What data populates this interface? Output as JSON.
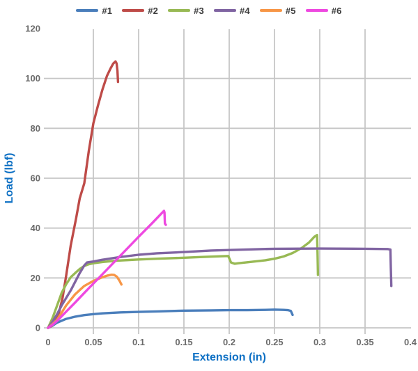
{
  "chart_data": {
    "type": "line",
    "title": "",
    "xlabel": "Extension (in)",
    "ylabel": "Load (lbf)",
    "xlim": [
      0,
      0.4
    ],
    "ylim": [
      0,
      120
    ],
    "grid": true,
    "legend_position": "top",
    "x_ticks": [
      0,
      0.05,
      0.1,
      0.15,
      0.2,
      0.25,
      0.3,
      0.35,
      0.4
    ],
    "x_tick_labels": [
      "0",
      "0.05",
      "0.1",
      "0.15",
      "0.2",
      "0.25",
      "0.3",
      "0.35",
      "0.4"
    ],
    "y_ticks": [
      0,
      20,
      40,
      60,
      80,
      100,
      120
    ],
    "y_tick_labels": [
      "0",
      "20",
      "40",
      "60",
      "80",
      "100",
      "120"
    ],
    "grid_color": "#c6c6c6",
    "tick_label_color": "#6b6b6b",
    "axis_title_color": "#0d70c4",
    "legend_label_color": "#3d3d3d",
    "series": [
      {
        "name": "#1",
        "color": "#4A7EBB",
        "points": [
          [
            0,
            0
          ],
          [
            0.005,
            0.9
          ],
          [
            0.01,
            2.1
          ],
          [
            0.02,
            3.6
          ],
          [
            0.03,
            4.5
          ],
          [
            0.04,
            5.1
          ],
          [
            0.05,
            5.5
          ],
          [
            0.06,
            5.8
          ],
          [
            0.08,
            6.2
          ],
          [
            0.1,
            6.4
          ],
          [
            0.12,
            6.6
          ],
          [
            0.15,
            6.9
          ],
          [
            0.18,
            7.0
          ],
          [
            0.2,
            7.1
          ],
          [
            0.22,
            7.1
          ],
          [
            0.24,
            7.2
          ],
          [
            0.25,
            7.3
          ],
          [
            0.26,
            7.2
          ],
          [
            0.265,
            7.1
          ],
          [
            0.268,
            6.8
          ],
          [
            0.27,
            5.2
          ]
        ]
      },
      {
        "name": "#2",
        "color": "#BE4B48",
        "points": [
          [
            0,
            0
          ],
          [
            0.004,
            0.8
          ],
          [
            0.008,
            2.5
          ],
          [
            0.012,
            6
          ],
          [
            0.016,
            12
          ],
          [
            0.02,
            21
          ],
          [
            0.025,
            33
          ],
          [
            0.031,
            44
          ],
          [
            0.035,
            52
          ],
          [
            0.04,
            58
          ],
          [
            0.045,
            71
          ],
          [
            0.05,
            82
          ],
          [
            0.055,
            89
          ],
          [
            0.06,
            95.5
          ],
          [
            0.065,
            101
          ],
          [
            0.069,
            104
          ],
          [
            0.072,
            106
          ],
          [
            0.0745,
            106.8
          ],
          [
            0.0757,
            106
          ],
          [
            0.0766,
            103
          ],
          [
            0.0772,
            98.6
          ]
        ]
      },
      {
        "name": "#3",
        "color": "#98B954",
        "points": [
          [
            0,
            0
          ],
          [
            0.005,
            4
          ],
          [
            0.01,
            9
          ],
          [
            0.015,
            14
          ],
          [
            0.02,
            17.5
          ],
          [
            0.025,
            20.3
          ],
          [
            0.03,
            22
          ],
          [
            0.035,
            23.6
          ],
          [
            0.04,
            24.8
          ],
          [
            0.045,
            25.5
          ],
          [
            0.05,
            25.9
          ],
          [
            0.06,
            26.4
          ],
          [
            0.075,
            26.9
          ],
          [
            0.09,
            27.2
          ],
          [
            0.1,
            27.4
          ],
          [
            0.12,
            27.7
          ],
          [
            0.15,
            28.1
          ],
          [
            0.17,
            28.4
          ],
          [
            0.19,
            28.7
          ],
          [
            0.199,
            28.8
          ],
          [
            0.202,
            26.2
          ],
          [
            0.206,
            25.7
          ],
          [
            0.21,
            25.9
          ],
          [
            0.22,
            26.3
          ],
          [
            0.24,
            27.1
          ],
          [
            0.25,
            27.7
          ],
          [
            0.26,
            28.6
          ],
          [
            0.27,
            30.0
          ],
          [
            0.28,
            32.0
          ],
          [
            0.288,
            34.2
          ],
          [
            0.294,
            36.5
          ],
          [
            0.297,
            37.2
          ],
          [
            0.2975,
            30.0
          ],
          [
            0.298,
            21.2
          ]
        ]
      },
      {
        "name": "#4",
        "color": "#8064A2",
        "points": [
          [
            0,
            0
          ],
          [
            0.005,
            2.5
          ],
          [
            0.01,
            5.5
          ],
          [
            0.015,
            9
          ],
          [
            0.02,
            12
          ],
          [
            0.025,
            15
          ],
          [
            0.03,
            18.5
          ],
          [
            0.035,
            22
          ],
          [
            0.04,
            25
          ],
          [
            0.043,
            26.2
          ],
          [
            0.05,
            26.6
          ],
          [
            0.06,
            27.3
          ],
          [
            0.08,
            28.4
          ],
          [
            0.1,
            29.3
          ],
          [
            0.12,
            29.9
          ],
          [
            0.15,
            30.4
          ],
          [
            0.18,
            31.0
          ],
          [
            0.2,
            31.2
          ],
          [
            0.25,
            31.7
          ],
          [
            0.3,
            31.8
          ],
          [
            0.35,
            31.7
          ],
          [
            0.375,
            31.6
          ],
          [
            0.378,
            31.4
          ],
          [
            0.3785,
            24.0
          ],
          [
            0.379,
            16.8
          ]
        ]
      },
      {
        "name": "#5",
        "color": "#F79646",
        "points": [
          [
            0,
            0
          ],
          [
            0.005,
            1.5
          ],
          [
            0.01,
            3.2
          ],
          [
            0.02,
            9
          ],
          [
            0.03,
            13.5
          ],
          [
            0.04,
            16.8
          ],
          [
            0.05,
            18.8
          ],
          [
            0.06,
            20.3
          ],
          [
            0.066,
            21.0
          ],
          [
            0.07,
            21.3
          ],
          [
            0.073,
            21.2
          ],
          [
            0.076,
            20.5
          ],
          [
            0.079,
            18.8
          ],
          [
            0.081,
            17.4
          ]
        ]
      },
      {
        "name": "#6",
        "color": "#EE49E0",
        "points": [
          [
            0,
            0
          ],
          [
            0.005,
            1.2
          ],
          [
            0.01,
            2.8
          ],
          [
            0.02,
            6.5
          ],
          [
            0.03,
            10.2
          ],
          [
            0.04,
            14
          ],
          [
            0.06,
            21.5
          ],
          [
            0.08,
            29
          ],
          [
            0.1,
            36.5
          ],
          [
            0.115,
            42
          ],
          [
            0.125,
            45.8
          ],
          [
            0.128,
            46.9
          ],
          [
            0.1285,
            46.3
          ],
          [
            0.129,
            41.8
          ],
          [
            0.13,
            41.3
          ]
        ]
      }
    ]
  }
}
